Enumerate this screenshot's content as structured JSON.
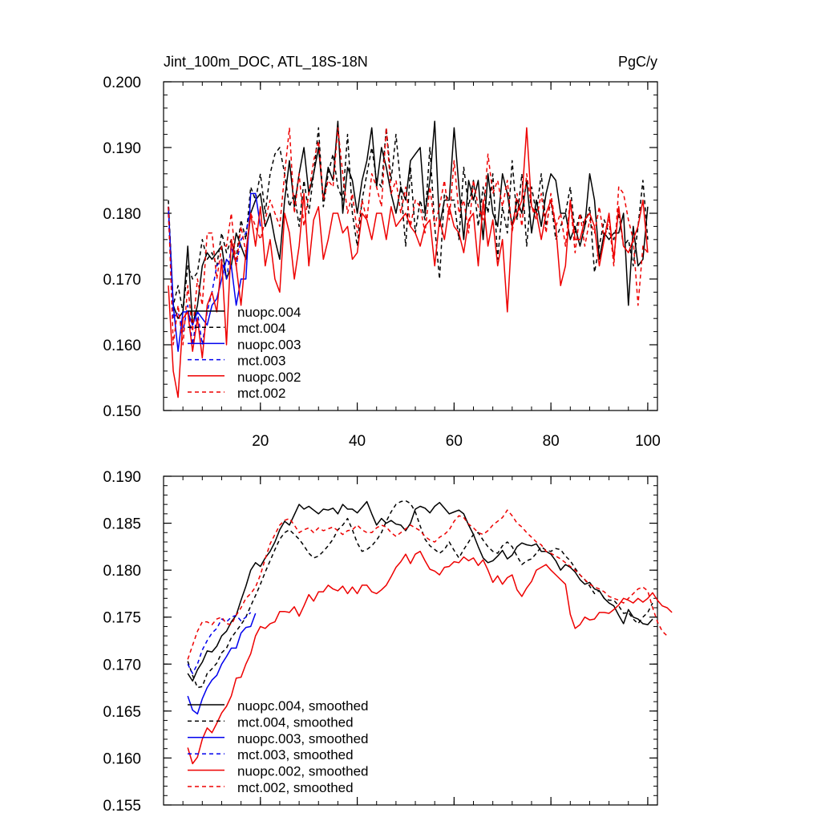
{
  "chart_data": [
    {
      "type": "line",
      "title": "Jint_100m_DOC, ATL_18S-18N",
      "units": "PgC/y",
      "xlim": [
        0,
        102
      ],
      "ylim": [
        0.15,
        0.2
      ],
      "xticks": [
        20,
        40,
        60,
        80,
        100
      ],
      "yticks": [
        0.15,
        0.16,
        0.17,
        0.18,
        0.19,
        0.2
      ],
      "ytick_labels": [
        "0.150",
        "0.160",
        "0.170",
        "0.180",
        "0.190",
        "0.200"
      ],
      "legend_position": "lower-left",
      "series": [
        {
          "name": "nuopc.004",
          "color": "#000000",
          "dash": "solid",
          "x_start": 1,
          "values": [
            0.181,
            0.166,
            0.164,
            0.165,
            0.175,
            0.163,
            0.166,
            0.172,
            0.174,
            0.173,
            0.174,
            0.175,
            0.17,
            0.172,
            0.177,
            0.175,
            0.173,
            0.18,
            0.182,
            0.183,
            0.178,
            0.18,
            0.176,
            0.173,
            0.182,
            0.188,
            0.181,
            0.186,
            0.19,
            0.183,
            0.186,
            0.19,
            0.182,
            0.187,
            0.185,
            0.194,
            0.18,
            0.187,
            0.185,
            0.18,
            0.185,
            0.188,
            0.193,
            0.184,
            0.19,
            0.187,
            0.183,
            0.18,
            0.184,
            0.182,
            0.188,
            0.189,
            0.19,
            0.18,
            0.185,
            0.194,
            0.178,
            0.182,
            0.182,
            0.193,
            0.184,
            0.176,
            0.185,
            0.182,
            0.185,
            0.176,
            0.186,
            0.18,
            0.178,
            0.186,
            0.183,
            0.178,
            0.182,
            0.18,
            0.185,
            0.177,
            0.182,
            0.178,
            0.183,
            0.186,
            0.185,
            0.18,
            0.18,
            0.176,
            0.178,
            0.175,
            0.178,
            0.186,
            0.182,
            0.173,
            0.177,
            0.176,
            0.177,
            0.177,
            0.18,
            0.166,
            0.178,
            0.172,
            0.173,
            0.181
          ]
        },
        {
          "name": "mct.004",
          "color": "#000000",
          "dash": "dashed",
          "x_start": 1,
          "values": [
            0.182,
            0.166,
            0.169,
            0.165,
            0.172,
            0.17,
            0.171,
            0.176,
            0.173,
            0.174,
            0.172,
            0.177,
            0.174,
            0.176,
            0.173,
            0.179,
            0.176,
            0.184,
            0.182,
            0.186,
            0.18,
            0.186,
            0.189,
            0.19,
            0.186,
            0.181,
            0.183,
            0.178,
            0.185,
            0.18,
            0.186,
            0.193,
            0.181,
            0.186,
            0.189,
            0.184,
            0.182,
            0.192,
            0.18,
            0.175,
            0.182,
            0.186,
            0.19,
            0.185,
            0.184,
            0.193,
            0.185,
            0.192,
            0.184,
            0.175,
            0.187,
            0.177,
            0.182,
            0.179,
            0.19,
            0.178,
            0.17,
            0.183,
            0.182,
            0.182,
            0.176,
            0.187,
            0.181,
            0.185,
            0.178,
            0.184,
            0.18,
            0.186,
            0.173,
            0.181,
            0.177,
            0.188,
            0.179,
            0.186,
            0.175,
            0.184,
            0.18,
            0.186,
            0.178,
            0.182,
            0.176,
            0.178,
            0.18,
            0.184,
            0.177,
            0.18,
            0.178,
            0.181,
            0.171,
            0.175,
            0.179,
            0.177,
            0.176,
            0.18,
            0.175,
            0.176,
            0.172,
            0.178,
            0.185,
            0.176
          ]
        },
        {
          "name": "nuopc.003",
          "color": "#0000ee",
          "dash": "solid",
          "x_start": 1,
          "values": [
            0.181,
            0.166,
            0.159,
            0.165,
            0.165,
            0.163,
            0.165,
            0.164,
            0.163,
            0.166,
            0.167,
            0.17,
            0.173,
            0.172,
            0.166,
            0.17,
            0.17,
            0.183,
            0.183,
            0.178
          ]
        },
        {
          "name": "mct.003",
          "color": "#0000ee",
          "dash": "dashed",
          "x_start": 1,
          "values": [
            0.18,
            0.164,
            0.165,
            0.162,
            0.166,
            0.16,
            0.165,
            0.16,
            0.165,
            0.168,
            0.172,
            0.173,
            0.17,
            0.175,
            0.172,
            0.176,
            0.177,
            0.181
          ]
        },
        {
          "name": "nuopc.002",
          "color": "#ee0000",
          "dash": "solid",
          "x_start": 1,
          "values": [
            0.169,
            0.156,
            0.152,
            0.164,
            0.165,
            0.159,
            0.164,
            0.158,
            0.166,
            0.168,
            0.165,
            0.173,
            0.16,
            0.176,
            0.172,
            0.166,
            0.174,
            0.18,
            0.175,
            0.181,
            0.172,
            0.176,
            0.17,
            0.168,
            0.18,
            0.177,
            0.17,
            0.175,
            0.183,
            0.172,
            0.179,
            0.181,
            0.173,
            0.176,
            0.18,
            0.18,
            0.177,
            0.178,
            0.173,
            0.174,
            0.18,
            0.179,
            0.176,
            0.18,
            0.18,
            0.176,
            0.181,
            0.178,
            0.179,
            0.18,
            0.178,
            0.177,
            0.175,
            0.178,
            0.179,
            0.172,
            0.179,
            0.176,
            0.181,
            0.178,
            0.177,
            0.174,
            0.179,
            0.18,
            0.172,
            0.182,
            0.175,
            0.179,
            0.172,
            0.176,
            0.165,
            0.178,
            0.18,
            0.182,
            0.193,
            0.181,
            0.18,
            0.176,
            0.18,
            0.182,
            0.178,
            0.169,
            0.172,
            0.182,
            0.176,
            0.176,
            0.179,
            0.18,
            0.178,
            0.172,
            0.176,
            0.18,
            0.173,
            0.181,
            0.175,
            0.174,
            0.176,
            0.178,
            0.182,
            0.174
          ]
        },
        {
          "name": "mct.002",
          "color": "#ee0000",
          "dash": "dashed",
          "x_start": 1,
          "values": [
            0.181,
            0.16,
            0.166,
            0.16,
            0.169,
            0.162,
            0.17,
            0.166,
            0.177,
            0.177,
            0.17,
            0.175,
            0.175,
            0.18,
            0.172,
            0.178,
            0.174,
            0.18,
            0.178,
            0.176,
            0.179,
            0.182,
            0.18,
            0.178,
            0.186,
            0.193,
            0.18,
            0.186,
            0.178,
            0.183,
            0.188,
            0.191,
            0.182,
            0.185,
            0.184,
            0.193,
            0.186,
            0.18,
            0.183,
            0.177,
            0.182,
            0.179,
            0.186,
            0.184,
            0.181,
            0.193,
            0.183,
            0.185,
            0.18,
            0.184,
            0.178,
            0.182,
            0.181,
            0.177,
            0.184,
            0.178,
            0.181,
            0.185,
            0.179,
            0.188,
            0.18,
            0.182,
            0.177,
            0.185,
            0.181,
            0.179,
            0.189,
            0.183,
            0.185,
            0.181,
            0.185,
            0.177,
            0.183,
            0.178,
            0.186,
            0.181,
            0.179,
            0.183,
            0.177,
            0.183,
            0.178,
            0.18,
            0.175,
            0.182,
            0.174,
            0.18,
            0.175,
            0.179,
            0.177,
            0.181,
            0.176,
            0.179,
            0.172,
            0.184,
            0.183,
            0.179,
            0.176,
            0.166,
            0.175,
            0.174
          ]
        }
      ]
    },
    {
      "type": "line",
      "title": "",
      "xlim": [
        0,
        102
      ],
      "ylim": [
        0.155,
        0.19
      ],
      "xticks": [
        20,
        40,
        60,
        80,
        100
      ],
      "yticks": [
        0.155,
        0.16,
        0.165,
        0.17,
        0.175,
        0.18,
        0.185,
        0.19
      ],
      "ytick_labels": [
        "0.155",
        "0.160",
        "0.165",
        "0.170",
        "0.175",
        "0.180",
        "0.185",
        "0.190"
      ],
      "legend_position": "lower-left",
      "series": [
        {
          "name": "nuopc.004, smoothed",
          "color": "#000000",
          "dash": "solid",
          "x_start": 5,
          "values": [
            0.169,
            0.1682,
            0.1694,
            0.1702,
            0.1714,
            0.1713,
            0.1719,
            0.173,
            0.1735,
            0.1745,
            0.1752,
            0.1768,
            0.1783,
            0.18,
            0.1808,
            0.1804,
            0.1813,
            0.182,
            0.183,
            0.1843,
            0.1852,
            0.1848,
            0.1859,
            0.187,
            0.1865,
            0.1868,
            0.1864,
            0.186,
            0.1865,
            0.1864,
            0.1866,
            0.186,
            0.187,
            0.1865,
            0.1865,
            0.1861,
            0.1867,
            0.1873,
            0.186,
            0.1848,
            0.1855,
            0.185,
            0.1853,
            0.1849,
            0.1848,
            0.1842,
            0.185,
            0.1865,
            0.1868,
            0.1866,
            0.1861,
            0.1868,
            0.1872,
            0.1866,
            0.186,
            0.1862,
            0.1864,
            0.186,
            0.1848,
            0.1838,
            0.1825,
            0.1813,
            0.1808,
            0.181,
            0.1815,
            0.1821,
            0.1812,
            0.1816,
            0.1825,
            0.1829,
            0.1827,
            0.1826,
            0.1828,
            0.182,
            0.182,
            0.1817,
            0.181,
            0.18,
            0.1806,
            0.1803,
            0.1798,
            0.179,
            0.1785,
            0.1787,
            0.178,
            0.1778,
            0.177,
            0.1765,
            0.1762,
            0.1752,
            0.1743,
            0.1758,
            0.175,
            0.1748,
            0.1743,
            0.1742,
            0.1748
          ]
        },
        {
          "name": "mct.004, smoothed",
          "color": "#000000",
          "dash": "dashed",
          "x_start": 5,
          "values": [
            0.1703,
            0.1688,
            0.1675,
            0.1676,
            0.169,
            0.1695,
            0.1701,
            0.1712,
            0.1717,
            0.1728,
            0.1735,
            0.1742,
            0.175,
            0.1762,
            0.1773,
            0.1785,
            0.1798,
            0.181,
            0.1822,
            0.1833,
            0.184,
            0.1843,
            0.1838,
            0.1833,
            0.1826,
            0.1818,
            0.1813,
            0.1815,
            0.182,
            0.1826,
            0.1833,
            0.1843,
            0.1848,
            0.1855,
            0.1843,
            0.1829,
            0.182,
            0.1822,
            0.1826,
            0.1832,
            0.184,
            0.1852,
            0.1862,
            0.187,
            0.1873,
            0.1874,
            0.1871,
            0.1862,
            0.1847,
            0.1833,
            0.1826,
            0.1822,
            0.1818,
            0.1822,
            0.183,
            0.1821,
            0.1813,
            0.1822,
            0.183,
            0.1838,
            0.184,
            0.1832,
            0.1825,
            0.182,
            0.1818,
            0.1826,
            0.183,
            0.1825,
            0.1815,
            0.1806,
            0.181,
            0.1812,
            0.1818,
            0.1825,
            0.1821,
            0.182,
            0.1823,
            0.1822,
            0.1815,
            0.181,
            0.1802,
            0.1795,
            0.179,
            0.1783,
            0.1775,
            0.1778,
            0.177,
            0.1768,
            0.1768,
            0.1762,
            0.1754,
            0.1755,
            0.1748,
            0.1743,
            0.175,
            0.1755,
            0.1765
          ]
        },
        {
          "name": "nuopc.003, smoothed",
          "color": "#0000ee",
          "dash": "solid",
          "x_start": 5,
          "values": [
            0.1666,
            0.1651,
            0.1647,
            0.1663,
            0.1675,
            0.1683,
            0.1688,
            0.17,
            0.1708,
            0.1717,
            0.1717,
            0.1733,
            0.1739,
            0.174,
            0.1754
          ]
        },
        {
          "name": "mct.003, smoothed",
          "color": "#0000ee",
          "dash": "dashed",
          "x_start": 5,
          "values": [
            0.17,
            0.169,
            0.17,
            0.1715,
            0.1725,
            0.1733,
            0.1738,
            0.1748,
            0.1745,
            0.175,
            0.1752,
            0.1746,
            0.175,
            0.1755
          ]
        },
        {
          "name": "nuopc.002, smoothed",
          "color": "#ee0000",
          "dash": "solid",
          "x_start": 5,
          "values": [
            0.1611,
            0.1594,
            0.1601,
            0.162,
            0.1632,
            0.1627,
            0.1637,
            0.1648,
            0.1655,
            0.1666,
            0.1685,
            0.1686,
            0.17,
            0.1711,
            0.173,
            0.174,
            0.1738,
            0.1743,
            0.1745,
            0.1756,
            0.1756,
            0.1755,
            0.1761,
            0.1751,
            0.1762,
            0.1774,
            0.1767,
            0.1777,
            0.1777,
            0.1784,
            0.178,
            0.1778,
            0.1783,
            0.1775,
            0.1782,
            0.1775,
            0.1784,
            0.1784,
            0.1777,
            0.1775,
            0.1779,
            0.1784,
            0.1793,
            0.1803,
            0.1809,
            0.1817,
            0.1807,
            0.1817,
            0.182,
            0.181,
            0.1801,
            0.1799,
            0.1795,
            0.1803,
            0.1804,
            0.1809,
            0.1808,
            0.1814,
            0.181,
            0.1813,
            0.1805,
            0.1811,
            0.18,
            0.1787,
            0.1794,
            0.1785,
            0.1792,
            0.1795,
            0.1779,
            0.1772,
            0.1781,
            0.1788,
            0.18,
            0.1803,
            0.1806,
            0.18,
            0.1795,
            0.179,
            0.1785,
            0.1753,
            0.1738,
            0.1742,
            0.175,
            0.1747,
            0.1748,
            0.1755,
            0.1755,
            0.1754,
            0.1758,
            0.1763,
            0.177,
            0.1768,
            0.1765,
            0.177,
            0.1766,
            0.177,
            0.1776,
            0.1768,
            0.1762,
            0.176,
            0.1755
          ]
        },
        {
          "name": "mct.002, smoothed",
          "color": "#ee0000",
          "dash": "dashed",
          "x_start": 5,
          "values": [
            0.1705,
            0.172,
            0.1735,
            0.1745,
            0.1745,
            0.1742,
            0.1748,
            0.175,
            0.1743,
            0.1742,
            0.1752,
            0.176,
            0.177,
            0.1775,
            0.1782,
            0.1795,
            0.1812,
            0.1828,
            0.1838,
            0.1848,
            0.1853,
            0.1855,
            0.1848,
            0.184,
            0.1843,
            0.1845,
            0.184,
            0.1845,
            0.1842,
            0.1844,
            0.1846,
            0.1842,
            0.1838,
            0.1842,
            0.1843,
            0.1848,
            0.1843,
            0.184,
            0.184,
            0.1845,
            0.1848,
            0.1846,
            0.184,
            0.1836,
            0.184,
            0.1844,
            0.1848,
            0.1845,
            0.1842,
            0.1836,
            0.1832,
            0.183,
            0.1835,
            0.1838,
            0.1843,
            0.1852,
            0.1858,
            0.1856,
            0.1849,
            0.1845,
            0.184,
            0.1838,
            0.1842,
            0.1848,
            0.1852,
            0.1856,
            0.1864,
            0.1858,
            0.185,
            0.1846,
            0.184,
            0.1835,
            0.183,
            0.1827,
            0.182,
            0.1818,
            0.1815,
            0.1812,
            0.1808,
            0.1804,
            0.18,
            0.1795,
            0.179,
            0.1785,
            0.1782,
            0.178,
            0.1777,
            0.1772,
            0.177,
            0.1768,
            0.1765,
            0.177,
            0.1775,
            0.178,
            0.1782,
            0.1778,
            0.176,
            0.1745,
            0.1735,
            0.173
          ]
        }
      ]
    }
  ]
}
